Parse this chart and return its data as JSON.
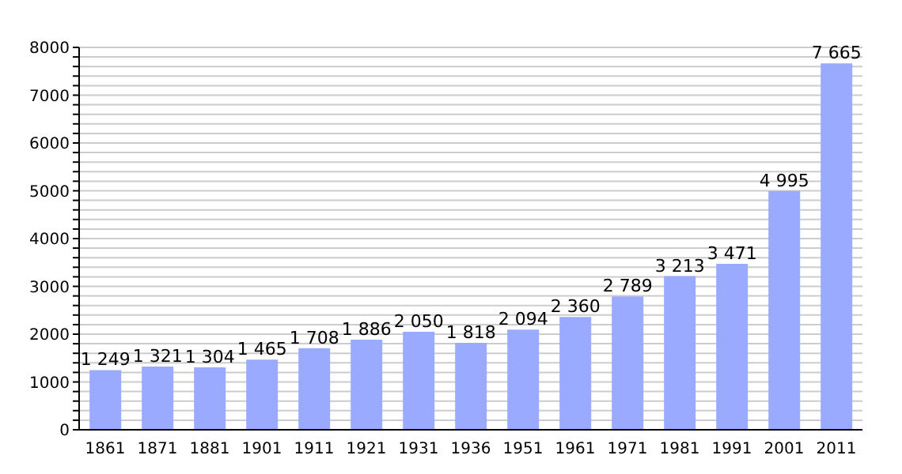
{
  "chart_data": {
    "type": "bar",
    "categories": [
      "1861",
      "1871",
      "1881",
      "1901",
      "1911",
      "1921",
      "1931",
      "1936",
      "1951",
      "1961",
      "1971",
      "1981",
      "1991",
      "2001",
      "2011"
    ],
    "values": [
      1249,
      1321,
      1304,
      1465,
      1708,
      1886,
      2050,
      1818,
      2094,
      2360,
      2789,
      3213,
      3471,
      4995,
      7665
    ],
    "value_labels": [
      "1 249",
      "1 321",
      "1 304",
      "1 465",
      "1 708",
      "1 886",
      "2 050",
      "1 818",
      "2 094",
      "2 360",
      "2 789",
      "3 213",
      "3 471",
      "4 995",
      "7 665"
    ],
    "color": "#99aaff",
    "ylim": [
      0,
      8000
    ],
    "yticks": [
      0,
      {
        "value": 200,
        "label": null
      },
      {
        "value": 400,
        "label": null
      },
      {
        "value": 600,
        "label": null
      },
      {
        "value": 800,
        "label": null
      },
      1000,
      {
        "value": 1200,
        "label": null
      },
      {
        "value": 1400,
        "label": null
      },
      {
        "value": 1600,
        "label": null
      },
      {
        "value": 1800,
        "label": null
      },
      2000,
      {
        "value": 2200,
        "label": null
      },
      {
        "value": 2400,
        "label": null
      },
      {
        "value": 2600,
        "label": null
      },
      {
        "value": 2800,
        "label": null
      },
      3000,
      {
        "value": 3200,
        "label": null
      },
      {
        "value": 3400,
        "label": null
      },
      {
        "value": 3600,
        "label": null
      },
      {
        "value": 3800,
        "label": null
      },
      4000,
      {
        "value": 4200,
        "label": null
      },
      {
        "value": 4400,
        "label": null
      },
      {
        "value": 4600,
        "label": null
      },
      {
        "value": 4800,
        "label": null
      },
      5000,
      {
        "value": 5200,
        "label": null
      },
      {
        "value": 5400,
        "label": null
      },
      {
        "value": 5600,
        "label": null
      },
      {
        "value": 5800,
        "label": null
      },
      6000,
      {
        "value": 6200,
        "label": null
      },
      {
        "value": 6400,
        "label": null
      },
      {
        "value": 6600,
        "label": null
      },
      {
        "value": 6800,
        "label": null
      },
      7000,
      {
        "value": 7200,
        "label": null
      },
      {
        "value": 7400,
        "label": null
      },
      {
        "value": 7600,
        "label": null
      },
      {
        "value": 7800,
        "label": null
      },
      8000
    ],
    "grid": "y"
  }
}
